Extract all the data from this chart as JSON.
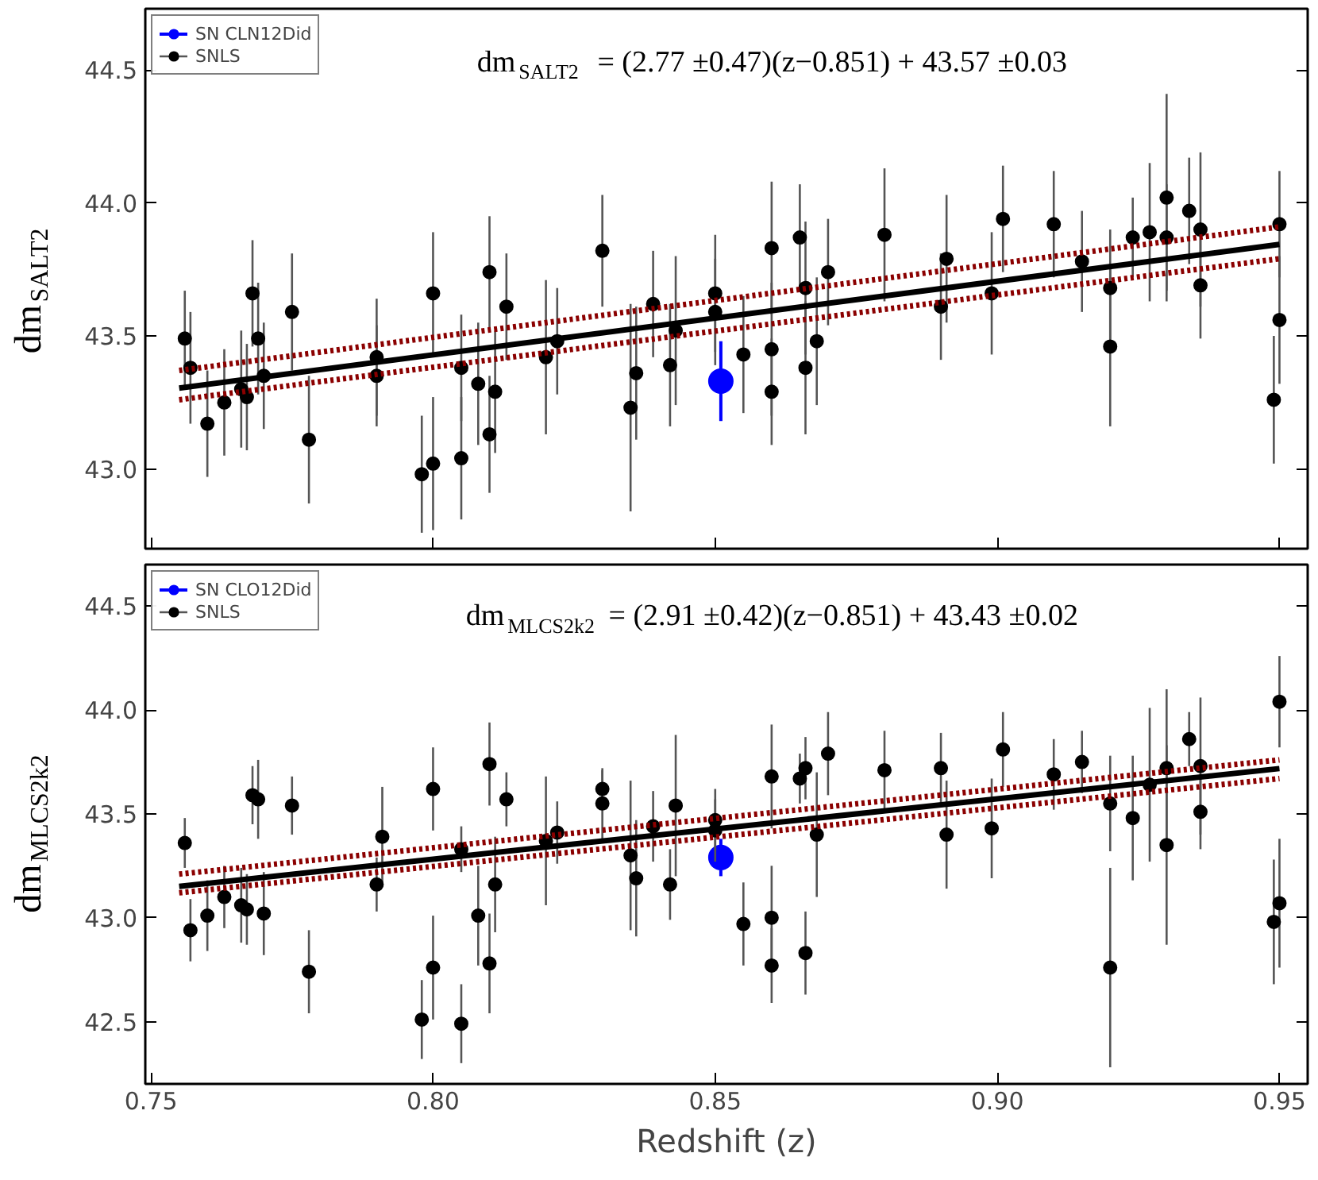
{
  "chart_data": [
    {
      "type": "scatter",
      "xlim": [
        0.749,
        0.955
      ],
      "ylim": [
        42.7,
        44.73
      ],
      "xticks": [
        {
          "value": 0.75,
          "label": null
        },
        {
          "value": 0.8,
          "label": null
        },
        {
          "value": 0.85,
          "label": null
        },
        {
          "value": 0.9,
          "label": null
        },
        {
          "value": 0.95,
          "label": null
        }
      ],
      "yticks": [
        {
          "value": 43.0,
          "label": "43.0"
        },
        {
          "value": 43.5,
          "label": "43.5"
        },
        {
          "value": 44.0,
          "label": "44.0"
        },
        {
          "value": 44.5,
          "label": "44.5"
        }
      ],
      "tick_labels": "y",
      "ylabel": "dm$_{SALT2}$",
      "legend": "top left",
      "marker": "circle",
      "annotations": [
        "dm$_{SALT2}$ = (2.77 ±0.47)(z−0.851) + 43.57 ±0.03"
      ],
      "series": [
        {
          "name": "SN CLN12Did",
          "color": "#0000ff",
          "x": [
            0.851
          ],
          "values": [
            43.33
          ],
          "errors": [
            0.15
          ]
        },
        {
          "name": "SNLS",
          "color": "#000000",
          "x": [
            0.756,
            0.757,
            0.76,
            0.763,
            0.766,
            0.767,
            0.768,
            0.769,
            0.77,
            0.775,
            0.778,
            0.79,
            0.79,
            0.798,
            0.8,
            0.8,
            0.805,
            0.805,
            0.808,
            0.81,
            0.81,
            0.811,
            0.813,
            0.82,
            0.822,
            0.83,
            0.835,
            0.836,
            0.839,
            0.842,
            0.843,
            0.85,
            0.85,
            0.855,
            0.86,
            0.86,
            0.86,
            0.865,
            0.866,
            0.866,
            0.868,
            0.87,
            0.88,
            0.89,
            0.891,
            0.899,
            0.901,
            0.91,
            0.915,
            0.92,
            0.92,
            0.924,
            0.927,
            0.93,
            0.93,
            0.934,
            0.936,
            0.936,
            0.949,
            0.95,
            0.95
          ],
          "values": [
            43.49,
            43.38,
            43.17,
            43.25,
            43.3,
            43.27,
            43.66,
            43.49,
            43.35,
            43.59,
            43.11,
            43.35,
            43.42,
            42.98,
            43.66,
            43.02,
            43.38,
            43.04,
            43.32,
            43.74,
            43.13,
            43.29,
            43.61,
            43.42,
            43.48,
            43.82,
            43.23,
            43.36,
            43.62,
            43.39,
            43.52,
            43.66,
            43.59,
            43.43,
            43.83,
            43.45,
            43.29,
            43.87,
            43.68,
            43.38,
            43.48,
            43.74,
            43.88,
            43.61,
            43.79,
            43.66,
            43.94,
            43.92,
            43.78,
            43.68,
            43.46,
            43.87,
            43.89,
            44.02,
            43.87,
            43.97,
            43.9,
            43.69,
            43.26,
            43.92,
            43.56
          ],
          "errors": [
            0.18,
            0.21,
            0.2,
            0.2,
            0.22,
            0.2,
            0.2,
            0.21,
            0.2,
            0.22,
            0.24,
            0.19,
            0.22,
            0.22,
            0.23,
            0.25,
            0.2,
            0.23,
            0.23,
            0.21,
            0.22,
            0.23,
            0.2,
            0.29,
            0.2,
            0.21,
            0.39,
            0.25,
            0.2,
            0.23,
            0.28,
            0.22,
            0.2,
            0.22,
            0.25,
            0.25,
            0.2,
            0.2,
            0.25,
            0.25,
            0.24,
            0.2,
            0.25,
            0.2,
            0.24,
            0.23,
            0.2,
            0.2,
            0.19,
            0.22,
            0.3,
            0.15,
            0.26,
            0.39,
            0.2,
            0.2,
            0.29,
            0.2,
            0.24,
            0.2,
            0.24
          ]
        },
        {
          "type": "line",
          "color": "#000000",
          "marker": "none",
          "line_style": "solid",
          "x": [
            0.755,
            0.95
          ],
          "values": [
            43.304,
            43.844
          ]
        },
        {
          "type": "line",
          "color": "#8b0000",
          "marker": "none",
          "line_style": "dotted",
          "x": [
            0.755,
            0.95
          ],
          "values": [
            43.37,
            43.91
          ]
        },
        {
          "type": "line",
          "color": "#8b0000",
          "marker": "none",
          "line_style": "dotted",
          "x": [
            0.755,
            0.95
          ],
          "values": [
            43.26,
            43.79
          ]
        }
      ]
    },
    {
      "type": "scatter",
      "xlim": [
        0.749,
        0.955
      ],
      "ylim": [
        42.2,
        44.7
      ],
      "xticks": [
        {
          "value": 0.75,
          "label": "0.75"
        },
        {
          "value": 0.8,
          "label": "0.80"
        },
        {
          "value": 0.85,
          "label": "0.85"
        },
        {
          "value": 0.9,
          "label": "0.90"
        },
        {
          "value": 0.95,
          "label": "0.95"
        }
      ],
      "yticks": [
        {
          "value": 42.5,
          "label": "42.5"
        },
        {
          "value": 43.0,
          "label": "43.0"
        },
        {
          "value": 43.5,
          "label": "43.5"
        },
        {
          "value": 44.0,
          "label": "44.0"
        },
        {
          "value": 44.5,
          "label": "44.5"
        }
      ],
      "xlabel": "Redshift (z)",
      "ylabel": "dm$_{MLCS2k2}$",
      "legend": "top left",
      "marker": "circle",
      "annotations": [
        "dm$_{MLCS2k2}$ = (2.91 ±0.42)(z−0.851) + 43.43 ±0.02"
      ],
      "series": [
        {
          "name": "SN CLO12Did",
          "color": "#0000ff",
          "x": [
            0.851
          ],
          "values": [
            43.29
          ],
          "errors": [
            0.09
          ]
        },
        {
          "name": "SNLS",
          "color": "#000000",
          "x": [
            0.756,
            0.757,
            0.76,
            0.763,
            0.766,
            0.767,
            0.768,
            0.769,
            0.77,
            0.775,
            0.778,
            0.79,
            0.791,
            0.798,
            0.8,
            0.8,
            0.805,
            0.805,
            0.808,
            0.81,
            0.81,
            0.811,
            0.813,
            0.82,
            0.822,
            0.83,
            0.83,
            0.835,
            0.836,
            0.839,
            0.842,
            0.843,
            0.85,
            0.85,
            0.855,
            0.86,
            0.86,
            0.86,
            0.865,
            0.866,
            0.866,
            0.868,
            0.87,
            0.88,
            0.89,
            0.891,
            0.899,
            0.901,
            0.91,
            0.915,
            0.92,
            0.92,
            0.924,
            0.927,
            0.93,
            0.93,
            0.934,
            0.936,
            0.936,
            0.949,
            0.95,
            0.95
          ],
          "values": [
            43.36,
            42.94,
            43.01,
            43.1,
            43.06,
            43.04,
            43.59,
            43.57,
            43.02,
            43.54,
            42.74,
            43.16,
            43.39,
            42.51,
            43.62,
            42.76,
            43.33,
            42.49,
            43.01,
            43.74,
            42.78,
            43.16,
            43.57,
            43.37,
            43.41,
            43.62,
            43.55,
            43.3,
            43.19,
            43.44,
            43.16,
            43.54,
            43.47,
            43.42,
            42.97,
            43.68,
            43.0,
            42.77,
            43.67,
            43.72,
            42.83,
            43.4,
            43.79,
            43.71,
            43.72,
            43.4,
            43.43,
            43.81,
            43.69,
            43.75,
            43.55,
            42.76,
            43.48,
            43.64,
            43.72,
            43.35,
            43.86,
            43.73,
            43.51,
            42.98,
            44.04,
            43.07
          ],
          "errors": [
            0.12,
            0.15,
            0.17,
            0.15,
            0.18,
            0.17,
            0.14,
            0.19,
            0.2,
            0.14,
            0.2,
            0.13,
            0.24,
            0.19,
            0.2,
            0.25,
            0.11,
            0.19,
            0.24,
            0.2,
            0.24,
            0.23,
            0.13,
            0.31,
            0.15,
            0.09,
            0.17,
            0.36,
            0.28,
            0.17,
            0.17,
            0.34,
            0.15,
            0.15,
            0.2,
            0.25,
            0.25,
            0.18,
            0.12,
            0.15,
            0.2,
            0.3,
            0.2,
            0.19,
            0.17,
            0.26,
            0.24,
            0.18,
            0.17,
            0.15,
            0.23,
            0.48,
            0.3,
            0.37,
            0.38,
            0.48,
            0.13,
            0.33,
            0.18,
            0.3,
            0.22,
            0.31
          ]
        },
        {
          "type": "line",
          "color": "#000000",
          "marker": "none",
          "line_style": "solid",
          "x": [
            0.755,
            0.95
          ],
          "values": [
            43.151,
            43.718
          ]
        },
        {
          "type": "line",
          "color": "#8b0000",
          "marker": "none",
          "line_style": "dotted",
          "x": [
            0.755,
            0.95
          ],
          "values": [
            43.21,
            43.76
          ]
        },
        {
          "type": "line",
          "color": "#8b0000",
          "marker": "none",
          "line_style": "dotted",
          "x": [
            0.755,
            0.95
          ],
          "values": [
            43.12,
            43.67
          ]
        }
      ]
    }
  ]
}
